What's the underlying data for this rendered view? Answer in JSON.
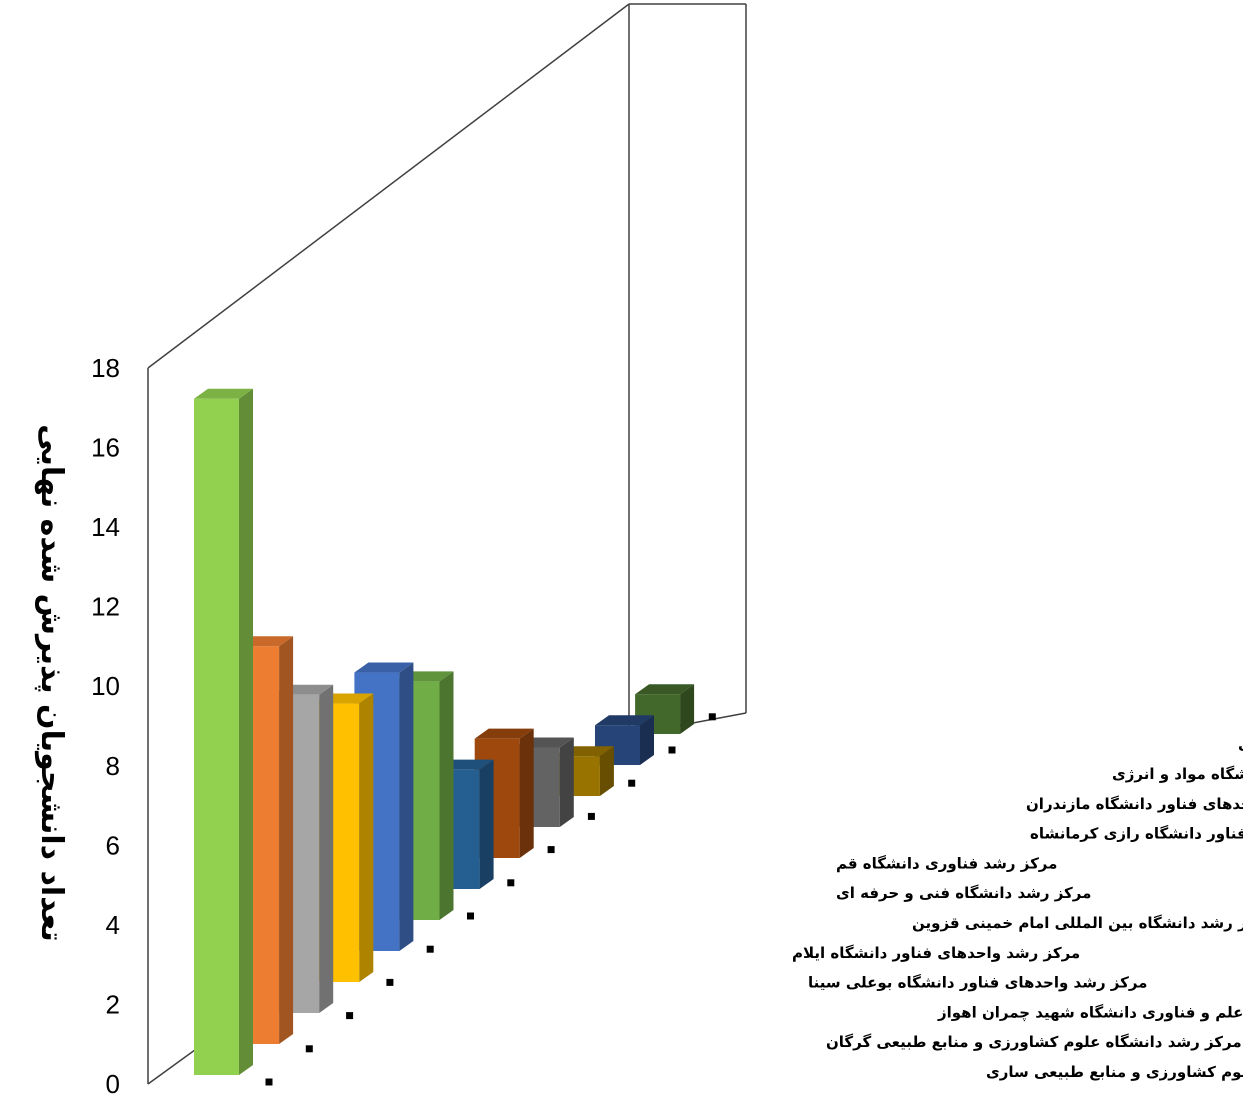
{
  "chart_data": {
    "type": "bar",
    "style": "3d-perspective",
    "title": "",
    "xlabel": "",
    "ylabel": "تعداد دانشجویان پذیرش شده نهایی",
    "ylim": [
      0,
      18
    ],
    "yticks": [
      0,
      2,
      4,
      6,
      8,
      10,
      12,
      14,
      16,
      18
    ],
    "grid": false,
    "legend": "none",
    "categories": [
      "مرکز رشد واحدهای فناوری طبرستان دانشگاه علوم کشاورزی و منابع طبیعی ساری",
      "مرکز رشد دانشگاه علوم کشاورزی و منابع طبیعی گرگان",
      "مرکز رشد فناوری پردیس علم و فناوری دانشگاه شهید چمران اهواز",
      "مرکز رشد واحدهای فناور دانشگاه بوعلی سینا",
      "مرکز رشد واحدهای فناور دانشگاه ایلام",
      "مرکز رشد دانشگاه بین المللی امام خمینی قزوین",
      "مرکز رشد دانشگاه فنی و حرفه ای",
      "مرکز رشد فناوری دانشگاه قم",
      "مرکز رشد واحدهای فناور دانشگاه رازی کرمانشاه",
      "مرکز رشد واحدهای فناور دانشگاه مازندران",
      "مرکز رشد واحدهای فناور پژوهشگاه مواد و انرژی",
      "مرکز نوآوری و رشد واحدهای فناوری دانشگاه محقق اردبیلی"
    ],
    "values": [
      17,
      10,
      8,
      7,
      7,
      6,
      3,
      3,
      2,
      1,
      1,
      1
    ],
    "colors": [
      "#92d050",
      "#ed7d31",
      "#a6a6a6",
      "#ffc000",
      "#4472c4",
      "#70ad47",
      "#255e91",
      "#9e480e",
      "#636363",
      "#997300",
      "#264478",
      "#43682b"
    ]
  }
}
